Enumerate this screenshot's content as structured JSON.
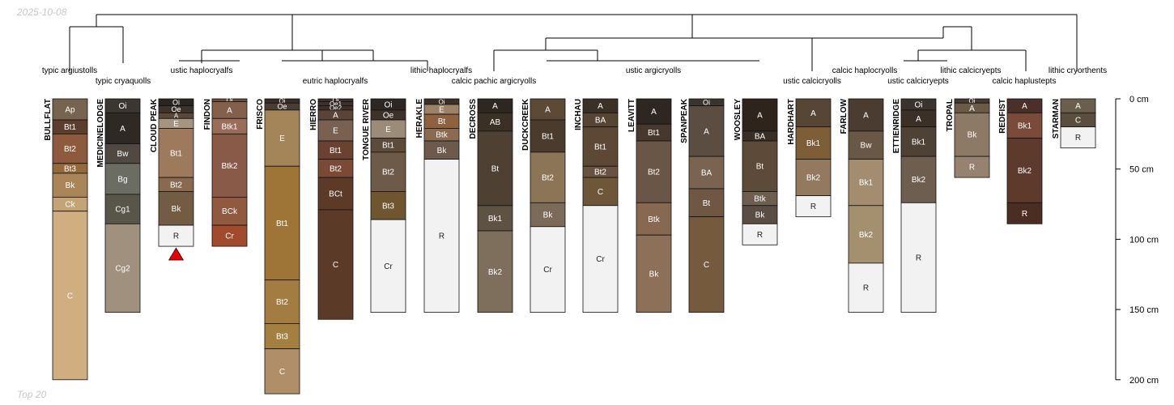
{
  "date_stamp": "2025-10-08",
  "footer_text": "Top 20",
  "colors": {
    "outline": "#111111",
    "dendrogram": "#000000",
    "flag": "#e60000",
    "light_text": "#ffffff",
    "dark_text": "#222222"
  },
  "axis": {
    "unit": "cm",
    "ticks": [
      0,
      50,
      100,
      150,
      200
    ],
    "tick_labels": [
      "0 cm",
      "50 cm",
      "100 cm",
      "150 cm",
      "200 cm"
    ],
    "max_depth": 200
  },
  "taxa_labels": [
    "typic argiustolls",
    "typic cryaquolls",
    "ustic haplocryalfs",
    "eutric haplocryalfs",
    "lithic haplocryalfs",
    "calcic pachic argicryolls",
    "ustic argicryolls",
    "ustic calcicryolls",
    "calcic haplocryolls",
    "ustic calcicryepts",
    "lithic calcicryepts",
    "calcic haplustepts",
    "lithic cryorthents"
  ],
  "profiles": [
    {
      "name": "BULLFLAT",
      "horizons": [
        {
          "name": "Ap",
          "top": 0,
          "bottom": 15,
          "color": "#776450"
        },
        {
          "name": "Bt1",
          "top": 15,
          "bottom": 25,
          "color": "#5b3e2c"
        },
        {
          "name": "Bt2",
          "top": 25,
          "bottom": 46,
          "color": "#8e5a3e"
        },
        {
          "name": "Bt3",
          "top": 46,
          "bottom": 53,
          "color": "#946a3c"
        },
        {
          "name": "Bk",
          "top": 53,
          "bottom": 70,
          "color": "#a98558"
        },
        {
          "name": "Ck",
          "top": 70,
          "bottom": 80,
          "color": "#c4a377"
        },
        {
          "name": "C",
          "top": 80,
          "bottom": 200,
          "color": "#d0ae80"
        }
      ]
    },
    {
      "name": "MEDICINELODGE",
      "horizons": [
        {
          "name": "Oi",
          "top": 0,
          "bottom": 10,
          "color": "#3a3630"
        },
        {
          "name": "A",
          "top": 10,
          "bottom": 32,
          "color": "#2e2925"
        },
        {
          "name": "Bw",
          "top": 32,
          "bottom": 46,
          "color": "#4f4941"
        },
        {
          "name": "Bg",
          "top": 46,
          "bottom": 68,
          "color": "#6b6c62"
        },
        {
          "name": "Cg1",
          "top": 68,
          "bottom": 89,
          "color": "#585549"
        },
        {
          "name": "Cg2",
          "top": 89,
          "bottom": 152,
          "color": "#a0907e"
        }
      ]
    },
    {
      "name": "CLOUD PEAK",
      "horizons": [
        {
          "name": "Oi",
          "top": 0,
          "bottom": 5,
          "color": "#2a2520"
        },
        {
          "name": "Oe",
          "top": 5,
          "bottom": 10,
          "color": "#3c342b"
        },
        {
          "name": "A",
          "top": 10,
          "bottom": 14,
          "color": "#5a4838"
        },
        {
          "name": "E",
          "top": 14,
          "bottom": 21,
          "color": "#a59480"
        },
        {
          "name": "Bt1",
          "top": 21,
          "bottom": 56,
          "color": "#9e7a5c"
        },
        {
          "name": "Bt2",
          "top": 56,
          "bottom": 66,
          "color": "#8a6a4e"
        },
        {
          "name": "Bk",
          "top": 66,
          "bottom": 90,
          "color": "#725c44"
        },
        {
          "name": "R",
          "top": 90,
          "bottom": 105,
          "color": "#f2f2f2"
        }
      ],
      "flag": true
    },
    {
      "name": "FINDON",
      "horizons": [
        {
          "name": "Oi",
          "top": 0,
          "bottom": 2,
          "color": "#6d4b3c"
        },
        {
          "name": "A",
          "top": 2,
          "bottom": 14,
          "color": "#845f4c"
        },
        {
          "name": "Btk1",
          "top": 14,
          "bottom": 25,
          "color": "#9a6c5a"
        },
        {
          "name": "Btk2",
          "top": 25,
          "bottom": 70,
          "color": "#8a5a48"
        },
        {
          "name": "BCk",
          "top": 70,
          "bottom": 90,
          "color": "#915a40"
        },
        {
          "name": "Cr",
          "top": 90,
          "bottom": 105,
          "color": "#a24b2c"
        }
      ]
    },
    {
      "name": "FRISCO",
      "horizons": [
        {
          "name": "Oi",
          "top": 0,
          "bottom": 3,
          "color": "#3a2e28"
        },
        {
          "name": "Oe",
          "top": 3,
          "bottom": 8,
          "color": "#4a3c32"
        },
        {
          "name": "E",
          "top": 8,
          "bottom": 48,
          "color": "#a48559"
        },
        {
          "name": "Bt1",
          "top": 48,
          "bottom": 129,
          "color": "#9e7536"
        },
        {
          "name": "Bt2",
          "top": 129,
          "bottom": 160,
          "color": "#a27c40"
        },
        {
          "name": "Bt3",
          "top": 160,
          "bottom": 178,
          "color": "#a48040"
        },
        {
          "name": "C",
          "top": 178,
          "bottom": 210,
          "color": "#b08e68"
        }
      ]
    },
    {
      "name": "HIERRO",
      "horizons": [
        {
          "name": "Oi",
          "top": 0,
          "bottom": 2,
          "color": "#3a3029"
        },
        {
          "name": "Oe1",
          "top": 2,
          "bottom": 5,
          "color": "#3c3029"
        },
        {
          "name": "Oe2",
          "top": 5,
          "bottom": 8,
          "color": "#3d3029"
        },
        {
          "name": "A",
          "top": 8,
          "bottom": 15,
          "color": "#5a4338"
        },
        {
          "name": "E",
          "top": 15,
          "bottom": 30,
          "color": "#7a6050"
        },
        {
          "name": "Bt1",
          "top": 30,
          "bottom": 43,
          "color": "#6b4232"
        },
        {
          "name": "Bt2",
          "top": 43,
          "bottom": 56,
          "color": "#7a4a36"
        },
        {
          "name": "BCt",
          "top": 56,
          "bottom": 79,
          "color": "#5d3a28"
        },
        {
          "name": "C",
          "top": 79,
          "bottom": 157,
          "color": "#5b3b28"
        }
      ]
    },
    {
      "name": "TONGUE RIVER",
      "horizons": [
        {
          "name": "Oi",
          "top": 0,
          "bottom": 8,
          "color": "#2c2722"
        },
        {
          "name": "Oe",
          "top": 8,
          "bottom": 15,
          "color": "#3c3228"
        },
        {
          "name": "E",
          "top": 15,
          "bottom": 28,
          "color": "#9a8c78"
        },
        {
          "name": "Bt1",
          "top": 28,
          "bottom": 38,
          "color": "#5c4b3a"
        },
        {
          "name": "Bt2",
          "top": 38,
          "bottom": 66,
          "color": "#6e5a48"
        },
        {
          "name": "Bt3",
          "top": 66,
          "bottom": 86,
          "color": "#6f5530"
        },
        {
          "name": "Cr",
          "top": 86,
          "bottom": 152,
          "color": "#f2f2f2"
        }
      ]
    },
    {
      "name": "HERAKLE",
      "horizons": [
        {
          "name": "Oi",
          "top": 0,
          "bottom": 4,
          "color": "#3b3029"
        },
        {
          "name": "E",
          "top": 4,
          "bottom": 11,
          "color": "#9d8268"
        },
        {
          "name": "Bt",
          "top": 11,
          "bottom": 21,
          "color": "#8e6140"
        },
        {
          "name": "Btk",
          "top": 21,
          "bottom": 30,
          "color": "#8a6a50"
        },
        {
          "name": "Bk",
          "top": 30,
          "bottom": 43,
          "color": "#6e5a4c"
        },
        {
          "name": "R",
          "top": 43,
          "bottom": 152,
          "color": "#f2f2f2"
        }
      ]
    },
    {
      "name": "DECROSS",
      "horizons": [
        {
          "name": "A",
          "top": 0,
          "bottom": 10,
          "color": "#2e2620"
        },
        {
          "name": "AB",
          "top": 10,
          "bottom": 23,
          "color": "#3b3026"
        },
        {
          "name": "Bt",
          "top": 23,
          "bottom": 76,
          "color": "#4e4032"
        },
        {
          "name": "Bk1",
          "top": 76,
          "bottom": 94,
          "color": "#5e5244"
        },
        {
          "name": "Bk2",
          "top": 94,
          "bottom": 152,
          "color": "#7e6e5c"
        }
      ]
    },
    {
      "name": "DUCKCREEK",
      "horizons": [
        {
          "name": "A",
          "top": 0,
          "bottom": 15,
          "color": "#5d4a36"
        },
        {
          "name": "Bt1",
          "top": 15,
          "bottom": 38,
          "color": "#4a3b2c"
        },
        {
          "name": "Bt2",
          "top": 38,
          "bottom": 74,
          "color": "#8c7456"
        },
        {
          "name": "Bk",
          "top": 74,
          "bottom": 91,
          "color": "#7b6b58"
        },
        {
          "name": "Cr",
          "top": 91,
          "bottom": 152,
          "color": "#f2f2f2"
        }
      ]
    },
    {
      "name": "INCHAU",
      "horizons": [
        {
          "name": "A",
          "top": 0,
          "bottom": 10,
          "color": "#3a3026"
        },
        {
          "name": "BA",
          "top": 10,
          "bottom": 20,
          "color": "#564533"
        },
        {
          "name": "Bt1",
          "top": 20,
          "bottom": 48,
          "color": "#5d4835"
        },
        {
          "name": "Bt2",
          "top": 48,
          "bottom": 56,
          "color": "#6a5240"
        },
        {
          "name": "C",
          "top": 56,
          "bottom": 76,
          "color": "#6e5638"
        },
        {
          "name": "Cr",
          "top": 76,
          "bottom": 152,
          "color": "#f2f2f2"
        }
      ]
    },
    {
      "name": "LEAVITT",
      "horizons": [
        {
          "name": "A",
          "top": 0,
          "bottom": 18,
          "color": "#2e2620"
        },
        {
          "name": "Bt1",
          "top": 18,
          "bottom": 30,
          "color": "#46382c"
        },
        {
          "name": "Bt2",
          "top": 30,
          "bottom": 74,
          "color": "#6a5646"
        },
        {
          "name": "Btk",
          "top": 74,
          "bottom": 97,
          "color": "#876850"
        },
        {
          "name": "Bk",
          "top": 97,
          "bottom": 152,
          "color": "#8c7058"
        }
      ]
    },
    {
      "name": "SPANPEAK",
      "horizons": [
        {
          "name": "Oi",
          "top": 0,
          "bottom": 5,
          "color": "#3a332e"
        },
        {
          "name": "A",
          "top": 5,
          "bottom": 41,
          "color": "#5b4d42"
        },
        {
          "name": "BA",
          "top": 41,
          "bottom": 64,
          "color": "#786450"
        },
        {
          "name": "Bt",
          "top": 64,
          "bottom": 84,
          "color": "#6e5844"
        },
        {
          "name": "C",
          "top": 84,
          "bottom": 152,
          "color": "#755a3e"
        }
      ]
    },
    {
      "name": "WOOSLEY",
      "horizons": [
        {
          "name": "A",
          "top": 0,
          "bottom": 23,
          "color": "#2e241c"
        },
        {
          "name": "BA",
          "top": 23,
          "bottom": 30,
          "color": "#3a2e24"
        },
        {
          "name": "Bt",
          "top": 30,
          "bottom": 66,
          "color": "#5d4a38"
        },
        {
          "name": "Btk",
          "top": 66,
          "bottom": 76,
          "color": "#6d5e50"
        },
        {
          "name": "Bk",
          "top": 76,
          "bottom": 89,
          "color": "#5a4e44"
        },
        {
          "name": "R",
          "top": 89,
          "bottom": 104,
          "color": "#f2f2f2"
        }
      ]
    },
    {
      "name": "HARDHART",
      "horizons": [
        {
          "name": "A",
          "top": 0,
          "bottom": 20,
          "color": "#574535"
        },
        {
          "name": "Bk1",
          "top": 20,
          "bottom": 43,
          "color": "#7e5e36"
        },
        {
          "name": "Bk2",
          "top": 43,
          "bottom": 69,
          "color": "#937a5e"
        },
        {
          "name": "R",
          "top": 69,
          "bottom": 84,
          "color": "#f2f2f2"
        }
      ]
    },
    {
      "name": "FARLOW",
      "horizons": [
        {
          "name": "A",
          "top": 0,
          "bottom": 23,
          "color": "#4a3c30"
        },
        {
          "name": "Bw",
          "top": 23,
          "bottom": 43,
          "color": "#6a5846"
        },
        {
          "name": "Bk1",
          "top": 43,
          "bottom": 76,
          "color": "#a48c70"
        },
        {
          "name": "Bk2",
          "top": 76,
          "bottom": 117,
          "color": "#a4906f"
        },
        {
          "name": "R",
          "top": 117,
          "bottom": 152,
          "color": "#f2f2f2"
        }
      ]
    },
    {
      "name": "ETTIENRIDGE",
      "horizons": [
        {
          "name": "Oi",
          "top": 0,
          "bottom": 8,
          "color": "#3a332e"
        },
        {
          "name": "A",
          "top": 8,
          "bottom": 20,
          "color": "#3b3028"
        },
        {
          "name": "Bk1",
          "top": 20,
          "bottom": 41,
          "color": "#4e4136"
        },
        {
          "name": "Bk2",
          "top": 41,
          "bottom": 74,
          "color": "#6e5e50"
        },
        {
          "name": "R",
          "top": 74,
          "bottom": 152,
          "color": "#f2f2f2"
        }
      ]
    },
    {
      "name": "TROPAL",
      "horizons": [
        {
          "name": "Oi",
          "top": 0,
          "bottom": 3,
          "color": "#453a30"
        },
        {
          "name": "A",
          "top": 3,
          "bottom": 10,
          "color": "#6a5a48"
        },
        {
          "name": "Bk",
          "top": 10,
          "bottom": 41,
          "color": "#8c7a66"
        },
        {
          "name": "R",
          "top": 41,
          "bottom": 56,
          "color": "#958270"
        }
      ]
    },
    {
      "name": "REDFIST",
      "horizons": [
        {
          "name": "A",
          "top": 0,
          "bottom": 10,
          "color": "#4a3028"
        },
        {
          "name": "Bk1",
          "top": 10,
          "bottom": 28,
          "color": "#7a4a3a"
        },
        {
          "name": "Bk2",
          "top": 28,
          "bottom": 74,
          "color": "#5e3a2c"
        },
        {
          "name": "R",
          "top": 74,
          "bottom": 89,
          "color": "#4a2e24"
        }
      ]
    },
    {
      "name": "STARMAN",
      "horizons": [
        {
          "name": "A",
          "top": 0,
          "bottom": 10,
          "color": "#6a5e4c"
        },
        {
          "name": "C",
          "top": 10,
          "bottom": 20,
          "color": "#5a4e3e"
        },
        {
          "name": "R",
          "top": 20,
          "bottom": 35,
          "color": "#f2f2f2"
        }
      ]
    }
  ]
}
